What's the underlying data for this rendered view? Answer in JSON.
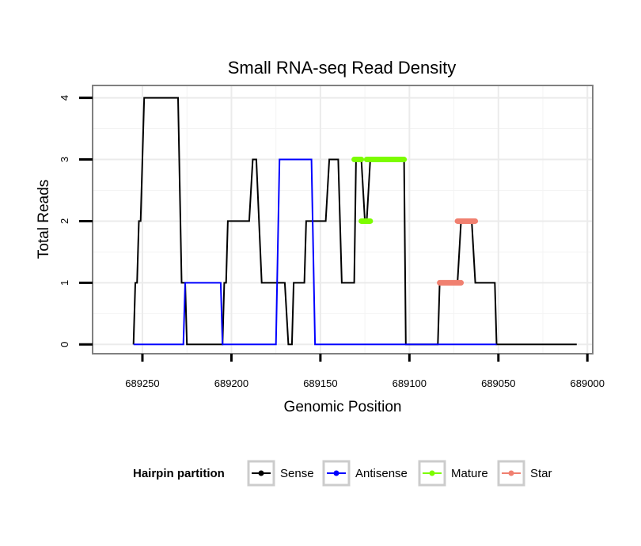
{
  "chart_data": {
    "type": "line",
    "title": "Small RNA-seq Read Density",
    "xlabel": "Genomic Position",
    "ylabel": "Total Reads",
    "x_reversed": true,
    "xlim": [
      689278,
      688997
    ],
    "ylim": [
      -0.15,
      4.2
    ],
    "xticks": [
      689250,
      689200,
      689150,
      689100,
      689050,
      689000
    ],
    "xtick_labels": [
      "689250",
      "689200",
      "689150",
      "689100",
      "689050",
      "689000"
    ],
    "yticks": [
      0,
      1,
      2,
      3,
      4
    ],
    "ytick_labels": [
      "0",
      "1",
      "2",
      "3",
      "4"
    ],
    "grid": true,
    "legend": {
      "title": "Hairpin partition",
      "position": "bottom",
      "entries": [
        {
          "label": "Sense",
          "color": "#000000"
        },
        {
          "label": "Antisense",
          "color": "#0000ff"
        },
        {
          "label": "Mature",
          "color": "#7cfc00"
        },
        {
          "label": "Star",
          "color": "#f08070"
        }
      ]
    },
    "series": [
      {
        "name": "Sense",
        "color": "#000000",
        "style": "line",
        "points": [
          [
            689255,
            0
          ],
          [
            689254,
            1
          ],
          [
            689253,
            1
          ],
          [
            689252,
            2
          ],
          [
            689251,
            2
          ],
          [
            689249,
            4
          ],
          [
            689230,
            4
          ],
          [
            689228,
            1
          ],
          [
            689226,
            1
          ],
          [
            689225,
            0
          ],
          [
            689205,
            0
          ],
          [
            689204,
            1
          ],
          [
            689203,
            1
          ],
          [
            689202,
            2
          ],
          [
            689190,
            2
          ],
          [
            689188,
            3
          ],
          [
            689186,
            3
          ],
          [
            689183,
            1
          ],
          [
            689170,
            1
          ],
          [
            689168,
            0
          ],
          [
            689166,
            0
          ],
          [
            689165,
            1
          ],
          [
            689159,
            1
          ],
          [
            689158,
            2
          ],
          [
            689147,
            2
          ],
          [
            689145,
            3
          ],
          [
            689140,
            3
          ],
          [
            689138,
            1
          ],
          [
            689131,
            1
          ],
          [
            689130,
            3
          ],
          [
            689127,
            3
          ],
          [
            689125,
            2
          ],
          [
            689124,
            2
          ],
          [
            689122,
            3
          ],
          [
            689103,
            3
          ],
          [
            689102,
            0
          ],
          [
            689084,
            0
          ],
          [
            689083,
            1
          ],
          [
            689077,
            1
          ],
          [
            689073,
            1
          ],
          [
            689071,
            2
          ],
          [
            689065,
            2
          ],
          [
            689063,
            1
          ],
          [
            689052,
            1
          ],
          [
            689051,
            0
          ],
          [
            689006,
            0
          ]
        ]
      },
      {
        "name": "Antisense",
        "color": "#0000ff",
        "style": "line",
        "points": [
          [
            689255,
            0
          ],
          [
            689227,
            0
          ],
          [
            689226,
            1
          ],
          [
            689206,
            1
          ],
          [
            689205,
            0
          ],
          [
            689175,
            0
          ],
          [
            689173,
            3
          ],
          [
            689155,
            3
          ],
          [
            689153,
            0
          ],
          [
            689051,
            0
          ]
        ]
      },
      {
        "name": "Mature",
        "color": "#7cfc00",
        "style": "thick",
        "segments": [
          {
            "from": 689131,
            "to": 689127,
            "value": 3
          },
          {
            "from": 689127,
            "to": 689122,
            "value": 2
          },
          {
            "from": 689124,
            "to": 689103,
            "value": 3
          }
        ]
      },
      {
        "name": "Star",
        "color": "#f08070",
        "style": "thick",
        "segments": [
          {
            "from": 689083,
            "to": 689071,
            "value": 1
          },
          {
            "from": 689073,
            "to": 689063,
            "value": 2
          }
        ]
      }
    ]
  }
}
